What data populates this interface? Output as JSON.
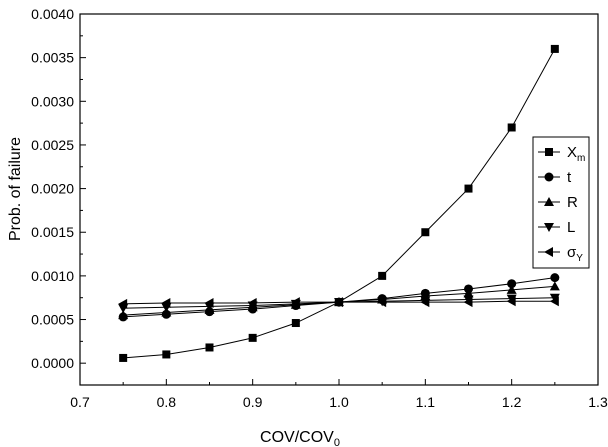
{
  "chart_data": {
    "type": "line",
    "title": "",
    "xlabel": "COV/COV",
    "xlabel_sub": "0",
    "ylabel": "Prob. of failure",
    "xlim": [
      0.7,
      1.3
    ],
    "ylim": [
      -0.00025,
      0.004
    ],
    "x_ticks": [
      "0.7",
      "0.8",
      "0.9",
      "1.0",
      "1.1",
      "1.2",
      "1.3"
    ],
    "y_ticks": [
      "0.0000",
      "0.0005",
      "0.0010",
      "0.0015",
      "0.0020",
      "0.0025",
      "0.0030",
      "0.0035",
      "0.0040"
    ],
    "grid": false,
    "legend_position": "right",
    "x": [
      0.75,
      0.8,
      0.85,
      0.9,
      0.95,
      1.0,
      1.05,
      1.1,
      1.15,
      1.2,
      1.25
    ],
    "series": [
      {
        "name": "X",
        "sub": "m",
        "marker": "square",
        "values": [
          6e-05,
          0.0001,
          0.00018,
          0.00029,
          0.00046,
          0.0007,
          0.001,
          0.0015,
          0.002,
          0.0027,
          0.0036
        ]
      },
      {
        "name": "t",
        "sub": "",
        "marker": "circle",
        "values": [
          0.00053,
          0.00056,
          0.00059,
          0.00062,
          0.00066,
          0.0007,
          0.00074,
          0.0008,
          0.00085,
          0.00091,
          0.00098
        ]
      },
      {
        "name": "R",
        "sub": "",
        "marker": "triangle-up",
        "values": [
          0.00055,
          0.00058,
          0.00061,
          0.00064,
          0.00067,
          0.0007,
          0.00073,
          0.00077,
          0.0008,
          0.00084,
          0.00088
        ]
      },
      {
        "name": "L",
        "sub": "",
        "marker": "triangle-down",
        "values": [
          0.00063,
          0.00064,
          0.00065,
          0.00066,
          0.00068,
          0.0007,
          0.00071,
          0.00072,
          0.00073,
          0.00074,
          0.00075
        ]
      },
      {
        "name": "σ",
        "sub": "Y",
        "marker": "triangle-left",
        "values": [
          0.00068,
          0.00069,
          0.00069,
          0.00069,
          0.0007,
          0.0007,
          0.0007,
          0.0007,
          0.0007,
          0.00071,
          0.00071
        ]
      }
    ]
  }
}
